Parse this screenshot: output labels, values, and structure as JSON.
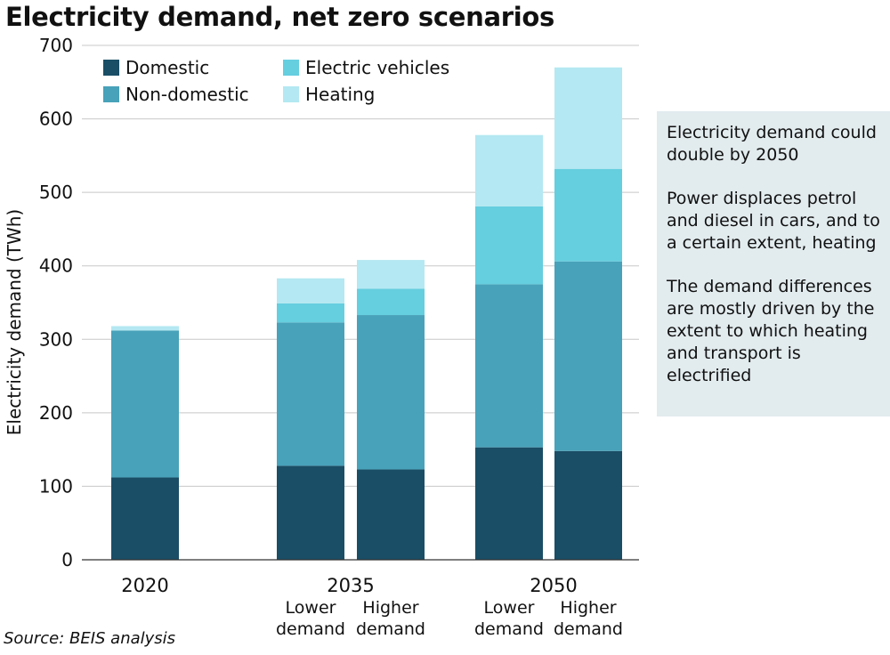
{
  "chart_data": {
    "type": "bar",
    "stacked": true,
    "title": "Electricity demand, net zero scenarios",
    "ylabel": "Electricity demand (TWh)",
    "ylim": [
      0,
      700
    ],
    "yticks": [
      0,
      100,
      200,
      300,
      400,
      500,
      600,
      700
    ],
    "grid": true,
    "legend_position": "top-left",
    "groups": [
      {
        "label": "2020",
        "bars": [
          ""
        ]
      },
      {
        "label": "2035",
        "bars": [
          "Lower demand",
          "Higher demand"
        ]
      },
      {
        "label": "2050",
        "bars": [
          "Lower demand",
          "Higher demand"
        ]
      }
    ],
    "series": [
      {
        "name": "Domestic",
        "color": "#1a4e66",
        "values": [
          112,
          128,
          123,
          153,
          148
        ]
      },
      {
        "name": "Non-domestic",
        "color": "#48a2b9",
        "values": [
          200,
          195,
          210,
          222,
          258
        ]
      },
      {
        "name": "Electric vehicles",
        "color": "#65cedf",
        "values": [
          0,
          26,
          36,
          106,
          126
        ]
      },
      {
        "name": "Heating",
        "color": "#b4e8f2",
        "values": [
          6,
          34,
          39,
          97,
          138
        ]
      }
    ],
    "notes": [
      "Electricity demand could double by 2050",
      "Power displaces petrol and diesel in cars, and to a certain extent, heating",
      "The demand differences are mostly driven by the extent to which heating and transport is electrified"
    ],
    "source": "Source: BEIS analysis"
  }
}
